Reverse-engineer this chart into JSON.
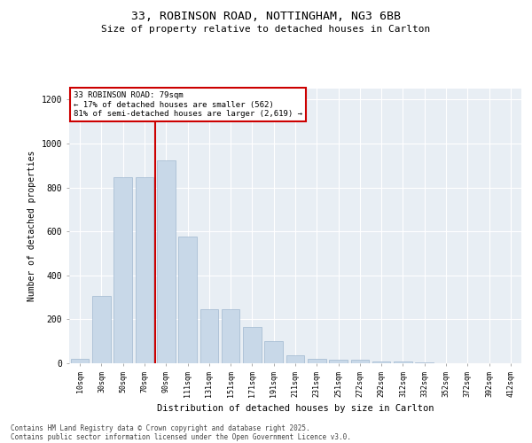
{
  "title1": "33, ROBINSON ROAD, NOTTINGHAM, NG3 6BB",
  "title2": "Size of property relative to detached houses in Carlton",
  "xlabel": "Distribution of detached houses by size in Carlton",
  "ylabel": "Number of detached properties",
  "categories": [
    "10sqm",
    "30sqm",
    "50sqm",
    "70sqm",
    "90sqm",
    "111sqm",
    "131sqm",
    "151sqm",
    "171sqm",
    "191sqm",
    "211sqm",
    "231sqm",
    "251sqm",
    "272sqm",
    "292sqm",
    "312sqm",
    "332sqm",
    "352sqm",
    "372sqm",
    "392sqm",
    "412sqm"
  ],
  "values": [
    20,
    305,
    845,
    845,
    925,
    575,
    245,
    245,
    165,
    100,
    35,
    20,
    18,
    18,
    8,
    10,
    5,
    0,
    0,
    0,
    0
  ],
  "bar_color": "#c8d8e8",
  "bar_edge_color": "#a0b8d0",
  "vline_x": 3.5,
  "vline_color": "#cc0000",
  "annotation_title": "33 ROBINSON ROAD: 79sqm",
  "annotation_line1": "← 17% of detached houses are smaller (562)",
  "annotation_line2": "81% of semi-detached houses are larger (2,619) →",
  "annotation_box_color": "#ffffff",
  "annotation_box_edge": "#cc0000",
  "ylim": [
    0,
    1250
  ],
  "yticks": [
    0,
    200,
    400,
    600,
    800,
    1000,
    1200
  ],
  "background_color": "#e8eef4",
  "footer1": "Contains HM Land Registry data © Crown copyright and database right 2025.",
  "footer2": "Contains public sector information licensed under the Open Government Licence v3.0."
}
